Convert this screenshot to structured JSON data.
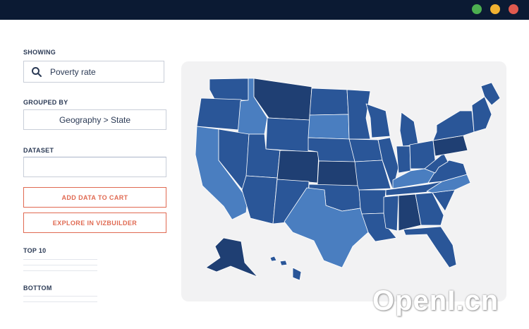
{
  "window": {
    "controls": [
      {
        "name": "green",
        "color": "#4caf50"
      },
      {
        "name": "yellow",
        "color": "#f0b131"
      },
      {
        "name": "red",
        "color": "#e05a4f"
      }
    ]
  },
  "sidebar": {
    "showing_label": "SHOWING",
    "search_value": "Poverty rate",
    "search_icon": "search-icon",
    "grouped_by_label": "GROUPED BY",
    "grouped_by_value": "Geography > State",
    "dataset_label": "DATASET",
    "dataset_value": "",
    "add_button": "ADD DATA TO CART",
    "explore_button": "EXPLORE IN VIZBUILDER",
    "top_label": "TOP 10",
    "bottom_label": "BOTTOM"
  },
  "map": {
    "title": "",
    "colors": {
      "dark": "#1f3f73",
      "medium": "#2a5698",
      "light": "#4a7ec0"
    },
    "states": [
      {
        "id": "WA",
        "shade": "medium"
      },
      {
        "id": "OR",
        "shade": "medium"
      },
      {
        "id": "CA",
        "shade": "light"
      },
      {
        "id": "ID",
        "shade": "light"
      },
      {
        "id": "NV",
        "shade": "medium"
      },
      {
        "id": "MT",
        "shade": "dark"
      },
      {
        "id": "WY",
        "shade": "medium"
      },
      {
        "id": "UT",
        "shade": "medium"
      },
      {
        "id": "AZ",
        "shade": "medium"
      },
      {
        "id": "CO",
        "shade": "dark"
      },
      {
        "id": "NM",
        "shade": "medium"
      },
      {
        "id": "ND",
        "shade": "medium"
      },
      {
        "id": "SD",
        "shade": "light"
      },
      {
        "id": "NE",
        "shade": "medium"
      },
      {
        "id": "KS",
        "shade": "dark"
      },
      {
        "id": "OK",
        "shade": "medium"
      },
      {
        "id": "TX",
        "shade": "light"
      },
      {
        "id": "MN",
        "shade": "medium"
      },
      {
        "id": "IA",
        "shade": "medium"
      },
      {
        "id": "MO",
        "shade": "medium"
      },
      {
        "id": "AR",
        "shade": "medium"
      },
      {
        "id": "LA",
        "shade": "medium"
      },
      {
        "id": "WI",
        "shade": "medium"
      },
      {
        "id": "IL",
        "shade": "medium"
      },
      {
        "id": "MI",
        "shade": "medium"
      },
      {
        "id": "IN",
        "shade": "medium"
      },
      {
        "id": "OH",
        "shade": "medium"
      },
      {
        "id": "KY",
        "shade": "light"
      },
      {
        "id": "TN",
        "shade": "medium"
      },
      {
        "id": "MS",
        "shade": "medium"
      },
      {
        "id": "AL",
        "shade": "dark"
      },
      {
        "id": "GA",
        "shade": "medium"
      },
      {
        "id": "FL",
        "shade": "medium"
      },
      {
        "id": "SC",
        "shade": "medium"
      },
      {
        "id": "NC",
        "shade": "light"
      },
      {
        "id": "VA",
        "shade": "medium"
      },
      {
        "id": "WV",
        "shade": "medium"
      },
      {
        "id": "PA",
        "shade": "dark"
      },
      {
        "id": "NY",
        "shade": "medium"
      },
      {
        "id": "NE-states",
        "shade": "medium"
      },
      {
        "id": "ME",
        "shade": "medium"
      },
      {
        "id": "AK",
        "shade": "dark"
      },
      {
        "id": "HI",
        "shade": "medium"
      }
    ]
  },
  "watermark": "OpenI.cn"
}
